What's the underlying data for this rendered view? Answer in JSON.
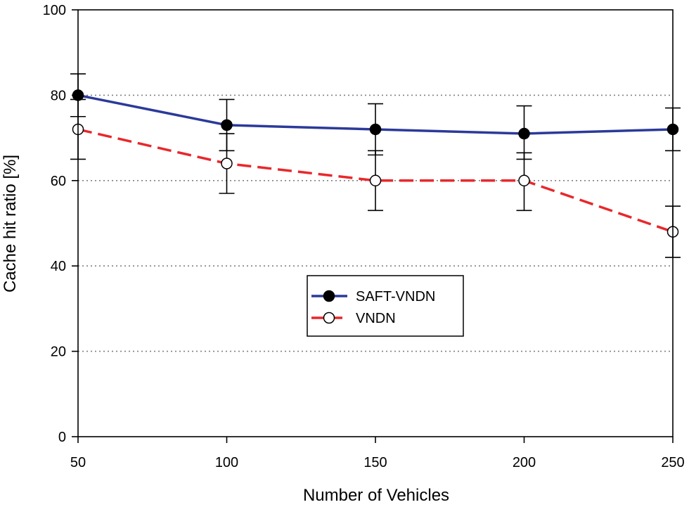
{
  "chart_data": {
    "type": "line",
    "title": "",
    "xlabel": "Number of Vehicles",
    "ylabel": "Cache hit ratio [%]",
    "x": [
      50,
      100,
      150,
      200,
      250
    ],
    "x_tick_labels": [
      "50",
      "100",
      "150",
      "200",
      "250"
    ],
    "y_tick_labels": [
      "0",
      "20",
      "40",
      "60",
      "80",
      "100"
    ],
    "y_ticks": [
      0,
      20,
      40,
      60,
      80,
      100
    ],
    "xlim": [
      50,
      250
    ],
    "ylim": [
      0,
      100
    ],
    "grid": "horizontal dotted",
    "legend_position": "center",
    "series": [
      {
        "name": "SAFT-VNDN",
        "color": "#2b3a9a",
        "style": "solid",
        "marker": "filled-circle",
        "values": [
          80,
          73,
          72,
          71,
          72
        ],
        "error_low": [
          75,
          67,
          66,
          65,
          67
        ],
        "error_high": [
          85,
          79,
          78,
          77.5,
          77
        ]
      },
      {
        "name": "VNDN",
        "color": "#e8282b",
        "style": "dashed",
        "marker": "open-circle",
        "values": [
          72,
          64,
          60,
          60,
          48
        ],
        "error_low": [
          65,
          57,
          53,
          53,
          42
        ],
        "error_high": [
          79,
          71,
          67,
          66.5,
          54
        ]
      }
    ]
  }
}
